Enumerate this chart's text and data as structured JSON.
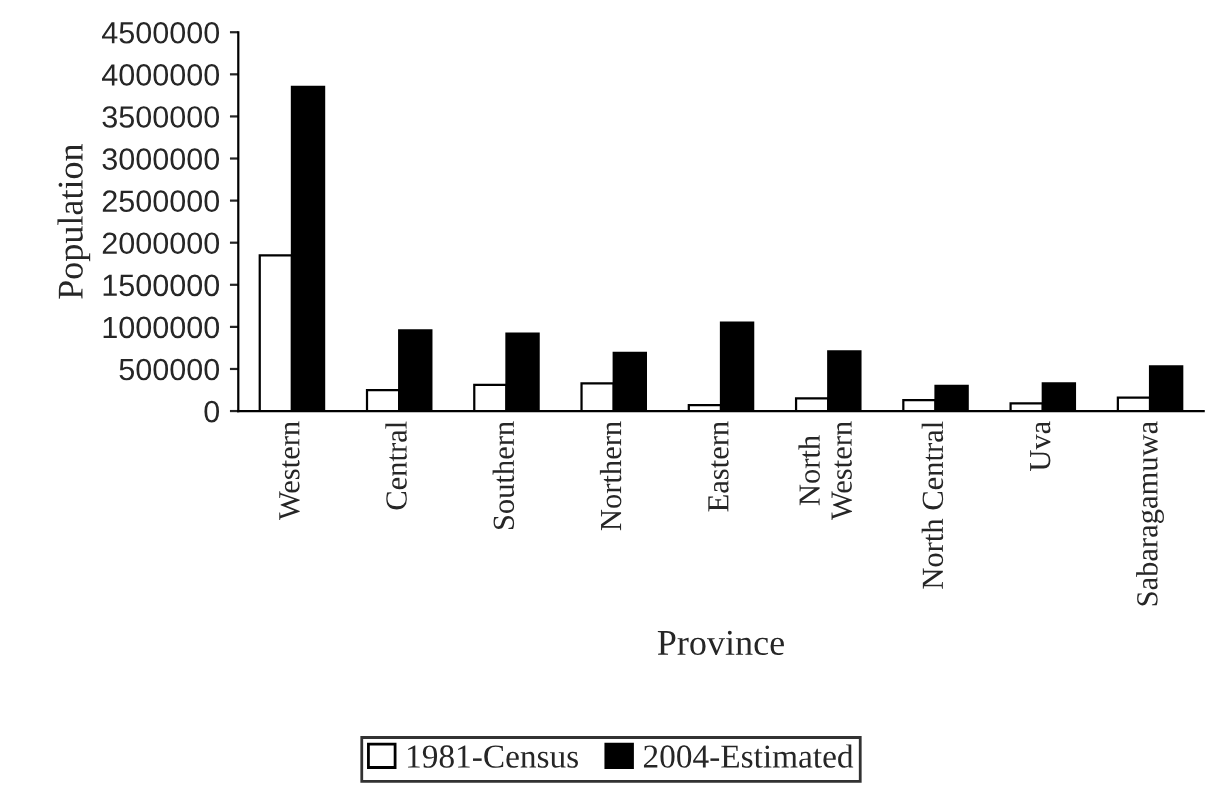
{
  "chart_data": {
    "type": "bar",
    "xlabel": "Province",
    "ylabel": "Population",
    "categories": [
      "Western",
      "Central",
      "Southern",
      "Northern",
      "Eastern",
      "North\nWestern",
      "North Central",
      "Uva",
      "Sabaragamuwa"
    ],
    "series": [
      {
        "name": "1981-Census",
        "color": "#ffffff",
        "values": [
          1850000,
          250000,
          310000,
          330000,
          70000,
          150000,
          130000,
          90000,
          160000
        ]
      },
      {
        "name": "2004-Estimated",
        "color": "#000000",
        "values": [
          3850000,
          960000,
          920000,
          690000,
          1050000,
          710000,
          300000,
          330000,
          530000
        ]
      }
    ],
    "ylim": [
      0,
      4500000
    ],
    "yticks": [
      0,
      500000,
      1000000,
      1500000,
      2000000,
      2500000,
      3000000,
      3500000,
      4000000,
      4500000
    ],
    "grid": false,
    "legend": "bottom"
  }
}
